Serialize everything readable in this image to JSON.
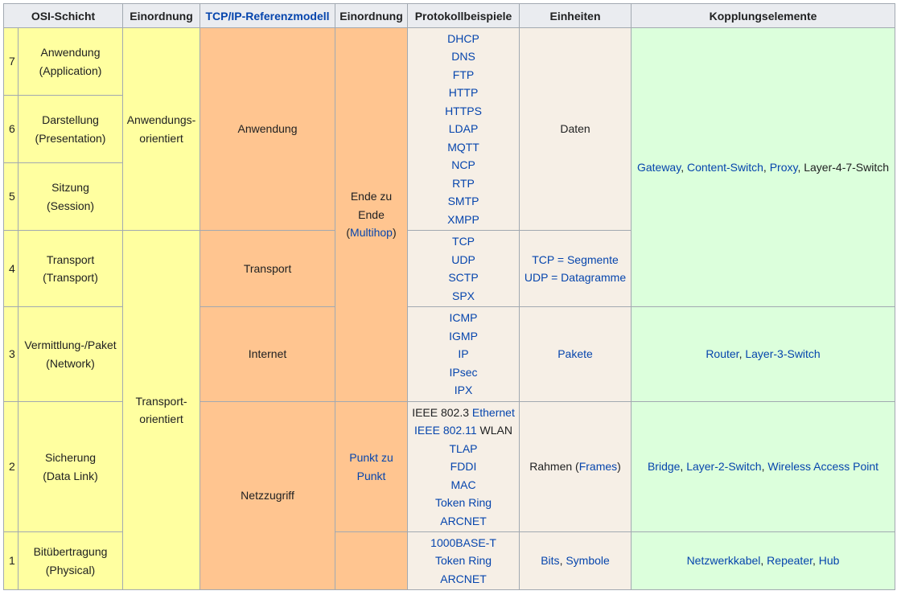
{
  "headers": {
    "osi": "OSI-Schicht",
    "einordnung1": "Einordnung",
    "tcpip": "TCP/IP-Referenzmodell",
    "einordnung2": "Einordnung",
    "protokolle": "Protokollbeispiele",
    "einheiten": "Einheiten",
    "kopplung": "Kopplungselemente"
  },
  "layers": {
    "l7": {
      "num": "7",
      "name": "Anwendung",
      "en": "(Application)"
    },
    "l6": {
      "num": "6",
      "name": "Darstellung",
      "en": "(Presentation)"
    },
    "l5": {
      "num": "5",
      "name": "Sitzung",
      "en": "(Session)"
    },
    "l4": {
      "num": "4",
      "name": "Transport",
      "en": "(Transport)"
    },
    "l3": {
      "num": "3",
      "name": "Vermittlung-/Paket",
      "en": "(Network)"
    },
    "l2": {
      "num": "2",
      "name": "Sicherung",
      "en": "(Data Link)"
    },
    "l1": {
      "num": "1",
      "name": "Bitübertragung",
      "en": "(Physical)"
    }
  },
  "einordnung": {
    "anwendung_a": "Anwendungs-",
    "anwendung_b": "orientiert",
    "transport_a": "Transport-",
    "transport_b": "orientiert"
  },
  "tcpip": {
    "anwendung": "Anwendung",
    "transport": "Transport",
    "internet": "Internet",
    "netzzugriff": "Netzzugriff"
  },
  "einordnung2": {
    "ende_a": "Ende zu",
    "ende_b": "Ende",
    "ende_link": "Multihop",
    "punkt_a": "Punkt zu",
    "punkt_b": "Punkt"
  },
  "protocols": {
    "app": [
      "DHCP",
      "DNS",
      "FTP",
      "HTTP",
      "HTTPS",
      "LDAP",
      "MQTT",
      "NCP",
      "RTP",
      "SMTP",
      "XMPP"
    ],
    "transport": [
      "TCP",
      "UDP",
      "SCTP",
      "SPX"
    ],
    "internet": [
      "ICMP",
      "IGMP",
      "IP",
      "IPsec",
      "IPX"
    ],
    "link": {
      "l1_plain": "IEEE 802.3 ",
      "l1_link": "Ethernet",
      "l2_link": "IEEE 802.11",
      "l2_plain": " WLAN",
      "rest": [
        "TLAP",
        "FDDI",
        "MAC",
        "Token Ring",
        "ARCNET"
      ]
    },
    "physical": [
      "1000BASE-T",
      "Token Ring",
      "ARCNET"
    ]
  },
  "units": {
    "app": "Daten",
    "transport_1": "TCP = Segmente",
    "transport_2": "UDP = Datagramme",
    "internet": "Pakete",
    "link_plain": "Rahmen (",
    "link_link": "Frames",
    "link_close": ")",
    "physical_1": "Bits",
    "physical_sep": ", ",
    "physical_2": "Symbole"
  },
  "coupling": {
    "upper": {
      "a": "Gateway",
      "b": "Content-Switch",
      "c": "Proxy",
      "d": "Layer-4-7-Switch",
      "sep": ", "
    },
    "internet": {
      "a": "Router",
      "b": "Layer-3-Switch",
      "sep": ", "
    },
    "link": {
      "a": "Bridge",
      "b": "Layer-2-Switch",
      "c": "Wireless Access Point",
      "sep": ", "
    },
    "physical": {
      "a": "Netzwerkkabel",
      "b": "Repeater",
      "c": "Hub",
      "sep": ", "
    }
  },
  "colors": {
    "osi_yellow": "#ffffa0",
    "tcpip_orange": "#ffc590",
    "proto_beige": "#f6efe6",
    "coupling_green": "#dcffdc",
    "header_gray": "#eaecf0",
    "link_blue": "#0645ad"
  }
}
